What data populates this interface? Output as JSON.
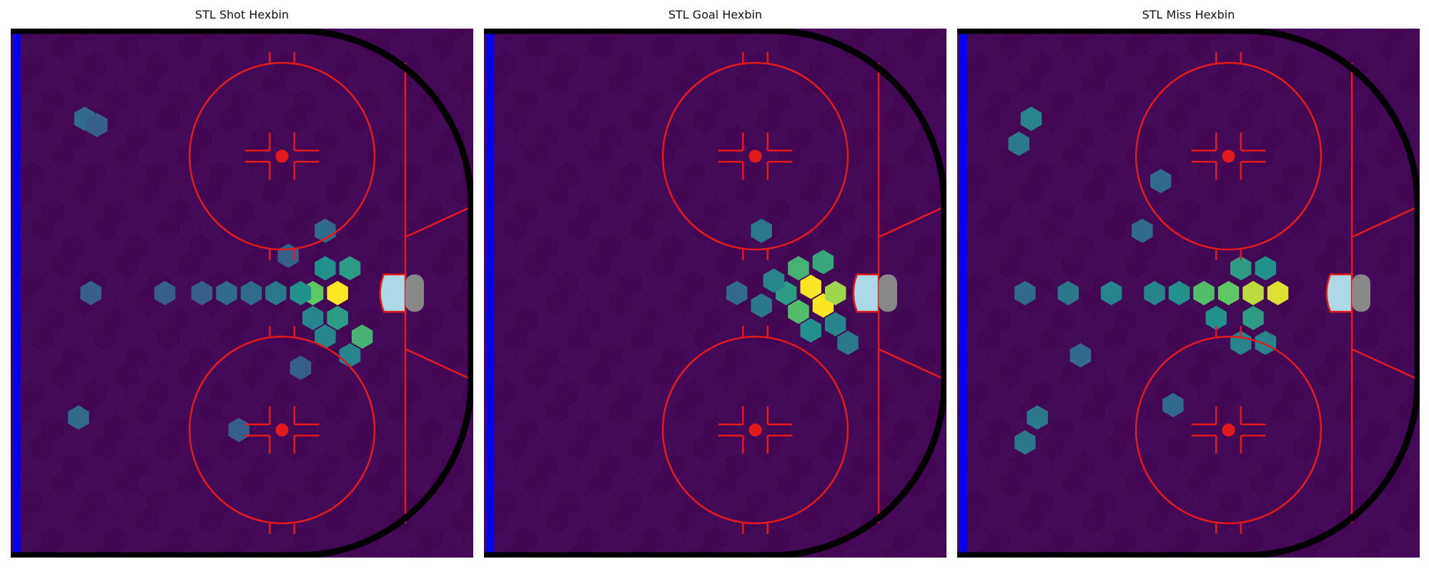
{
  "chart_data": [
    {
      "type": "hexbin",
      "title": "STL Shot Hexbin",
      "xlim": [
        25,
        100
      ],
      "ylim": [
        -42.5,
        42.5
      ],
      "x": [
        78,
        74,
        82,
        80,
        76,
        72,
        78,
        76,
        80,
        74,
        68,
        64,
        60,
        56,
        50,
        38,
        36,
        37,
        39,
        62,
        72,
        76,
        70
      ],
      "y": [
        0,
        0,
        -7,
        4,
        4,
        0,
        -4,
        -7,
        -10,
        -4,
        0,
        0,
        0,
        0,
        0,
        0,
        -20,
        28,
        27,
        -22,
        -12,
        10,
        6
      ],
      "values": [
        1.0,
        0.75,
        0.65,
        0.55,
        0.5,
        0.5,
        0.55,
        0.45,
        0.45,
        0.45,
        0.4,
        0.35,
        0.35,
        0.3,
        0.3,
        0.3,
        0.35,
        0.35,
        0.3,
        0.3,
        0.3,
        0.35,
        0.3
      ]
    },
    {
      "type": "hexbin",
      "title": "STL Goal Hexbin",
      "xlim": [
        25,
        100
      ],
      "ylim": [
        -42.5,
        42.5
      ],
      "x": [
        78,
        80,
        82,
        76,
        76,
        74,
        80,
        72,
        78,
        82,
        70,
        70,
        84,
        66
      ],
      "y": [
        1,
        -2,
        0,
        -3,
        4,
        0,
        5,
        2,
        -6,
        -5,
        -2,
        10,
        -8,
        0
      ],
      "values": [
        1.0,
        1.0,
        0.85,
        0.7,
        0.65,
        0.55,
        0.6,
        0.45,
        0.5,
        0.45,
        0.4,
        0.4,
        0.4,
        0.35
      ]
    },
    {
      "type": "hexbin",
      "title": "STL Miss Hexbin",
      "xlim": [
        25,
        100
      ],
      "ylim": [
        -42.5,
        42.5
      ],
      "x": [
        73,
        77,
        69,
        65,
        71,
        75,
        73,
        67,
        71,
        75,
        61,
        57,
        50,
        43,
        36,
        37,
        35,
        38,
        36,
        58,
        60,
        55,
        45
      ],
      "y": [
        0,
        0,
        0,
        0,
        4,
        4,
        -4,
        -4,
        -8,
        -8,
        0,
        0,
        0,
        0,
        0,
        28,
        24,
        -20,
        -24,
        18,
        -18,
        10,
        -10
      ],
      "values": [
        0.9,
        0.95,
        0.75,
        0.7,
        0.55,
        0.5,
        0.55,
        0.5,
        0.45,
        0.45,
        0.5,
        0.45,
        0.45,
        0.4,
        0.35,
        0.45,
        0.4,
        0.4,
        0.4,
        0.35,
        0.35,
        0.35,
        0.35
      ]
    }
  ]
}
